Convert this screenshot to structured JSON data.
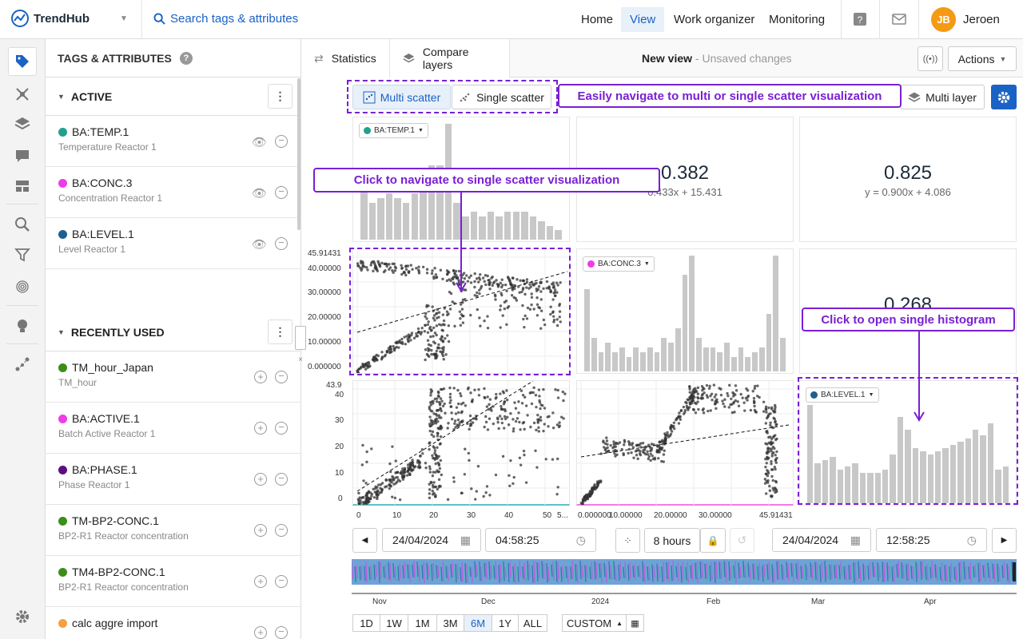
{
  "app": {
    "name": "TrendHub"
  },
  "search": {
    "placeholder": "Search tags & attributes"
  },
  "nav": {
    "items": [
      {
        "label": "Home"
      },
      {
        "label": "View"
      },
      {
        "label": "Work organizer"
      },
      {
        "label": "Monitoring"
      }
    ],
    "active": "View"
  },
  "user": {
    "initials": "JB",
    "name": "Jeroen"
  },
  "panel": {
    "title": "TAGS & ATTRIBUTES",
    "active_label": "ACTIVE",
    "recent_label": "RECENTLY USED",
    "active_tags": [
      {
        "name": "BA:TEMP.1",
        "desc": "Temperature Reactor 1",
        "color": "#22a08f"
      },
      {
        "name": "BA:CONC.3",
        "desc": "Concentration Reactor 1",
        "color": "#f03ce8"
      },
      {
        "name": "BA:LEVEL.1",
        "desc": "Level Reactor 1",
        "color": "#1f5f8f"
      }
    ],
    "recent_tags": [
      {
        "name": "TM_hour_Japan",
        "desc": "TM_hour",
        "color": "#3b8e1a"
      },
      {
        "name": "BA:ACTIVE.1",
        "desc": "Batch Active Reactor 1",
        "color": "#f03ce8"
      },
      {
        "name": "BA:PHASE.1",
        "desc": "Phase Reactor 1",
        "color": "#5a1080"
      },
      {
        "name": "TM-BP2-CONC.1",
        "desc": "BP2-R1 Reactor concentration",
        "color": "#3b8e1a"
      },
      {
        "name": "TM4-BP2-CONC.1",
        "desc": "BP2-R1 Reactor concentration",
        "color": "#3b8e1a"
      },
      {
        "name": "calc aggre import",
        "desc": "",
        "color": "#f5a040"
      }
    ]
  },
  "toolbar": {
    "statistics": "Statistics",
    "compare_layers": "Compare layers",
    "view_name": "New view",
    "view_status": "- Unsaved changes",
    "actions": "Actions",
    "multi_scatter": "Multi scatter",
    "single_scatter": "Single scatter",
    "multi_layer": "Multi layer"
  },
  "annotations": {
    "nav_tip": "Easily navigate to multi or single scatter visualization",
    "single_tip": "Click to navigate to single scatter visualization",
    "hist_tip": "Click to open single histogram"
  },
  "matrix": {
    "tag1": "BA:TEMP.1",
    "tag2": "BA:CONC.3",
    "tag3": "BA:LEVEL.1",
    "r12": "0.382",
    "eq12": "0.433x + 15.431",
    "r13": "0.825",
    "eq13": "y = 0.900x + 4.086",
    "r23": "0.268",
    "y_ticks_conc": [
      "45.91431",
      "40.00000",
      "30.00000",
      "20.00000",
      "10.00000",
      "0.000000"
    ],
    "y_ticks_level": [
      "43.9",
      "40",
      "30",
      "20",
      "10",
      "0"
    ],
    "x_ticks_temp": [
      "0",
      "10",
      "20",
      "30",
      "40",
      "50",
      "5..."
    ],
    "x_ticks_conc": [
      "0.000000",
      "10.00000",
      "20.00000",
      "30.00000",
      "45.91431"
    ]
  },
  "chart_data": [
    {
      "type": "bar",
      "title": "BA:TEMP.1 histogram",
      "values": [
        15,
        8,
        9,
        10,
        9,
        8,
        10,
        14,
        16,
        16,
        25,
        8,
        5,
        6,
        5,
        6,
        5,
        6,
        6,
        6,
        5,
        4,
        3,
        2
      ]
    },
    {
      "type": "bar",
      "title": "BA:CONC.3 histogram",
      "values": [
        17,
        7,
        4,
        6,
        4,
        5,
        3,
        5,
        4,
        5,
        4,
        7,
        6,
        9,
        20,
        24,
        7,
        5,
        5,
        4,
        6,
        3,
        5,
        3,
        4,
        5,
        12,
        24,
        7
      ]
    },
    {
      "type": "bar",
      "title": "BA:LEVEL.1 histogram",
      "values": [
        32,
        13,
        14,
        15,
        11,
        12,
        13,
        10,
        10,
        10,
        11,
        16,
        28,
        24,
        18,
        17,
        16,
        17,
        18,
        19,
        20,
        21,
        24,
        22,
        26,
        11,
        12
      ]
    }
  ],
  "time": {
    "start_date": "24/04/2024",
    "start_time": "04:58:25",
    "duration": "8 hours",
    "end_date": "24/04/2024",
    "end_time": "12:58:25",
    "months": [
      "Nov",
      "Dec",
      "2024",
      "Feb",
      "Mar",
      "Apr"
    ],
    "ranges": [
      "1D",
      "1W",
      "1M",
      "3M",
      "6M",
      "1Y",
      "ALL"
    ],
    "active_range": "6M",
    "custom": "CUSTOM"
  }
}
